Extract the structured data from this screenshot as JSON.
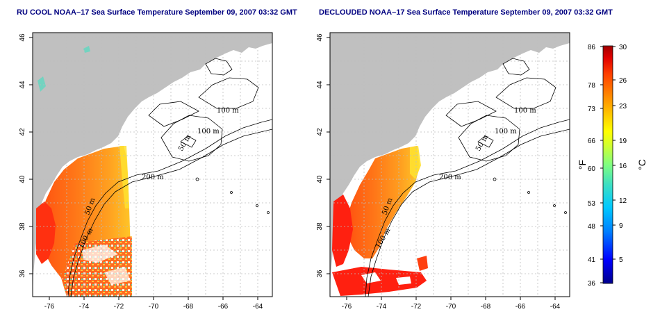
{
  "left_panel": {
    "title": "RU COOL NOAA–17 Sea Surface Temperature September 09, 2007 03:32 GMT",
    "x_ticks": [
      "-76",
      "-74",
      "-72",
      "-70",
      "-68",
      "-66",
      "-64"
    ],
    "y_ticks": [
      "36",
      "38",
      "40",
      "42",
      "44",
      "46"
    ],
    "contour_labels": [
      "100 m",
      "100 m",
      "50 m",
      "200 m",
      "50 m",
      "100 m"
    ]
  },
  "right_panel": {
    "title": "DECLOUDED NOAA–17 Sea Surface Temperature September 09, 2007 03:32 GMT",
    "x_ticks": [
      "-76",
      "-74",
      "-72",
      "-70",
      "-68",
      "-66",
      "-64"
    ],
    "y_ticks": [
      "36",
      "38",
      "40",
      "42",
      "44",
      "46"
    ],
    "contour_labels": [
      "100 m",
      "100 m",
      "50 m",
      "200 m",
      "50 m",
      "100 m"
    ]
  },
  "colorbar": {
    "fahrenheit_unit": "°F",
    "celsius_unit": "°C",
    "fahrenheit_ticks": [
      "86",
      "78",
      "73",
      "66",
      "60",
      "53",
      "48",
      "41",
      "36"
    ],
    "celsius_ticks": [
      "30",
      "26",
      "23",
      "19",
      "16",
      "12",
      "9",
      "5"
    ]
  },
  "colors": {
    "land": "#c0c0c0",
    "title": "#000080",
    "colormap": [
      "#00008b",
      "#0000ff",
      "#0080ff",
      "#00c8ff",
      "#40e0c0",
      "#80ff80",
      "#d0ff30",
      "#ffff00",
      "#ffc000",
      "#ff8000",
      "#ff4000",
      "#e00000",
      "#a00000"
    ]
  }
}
